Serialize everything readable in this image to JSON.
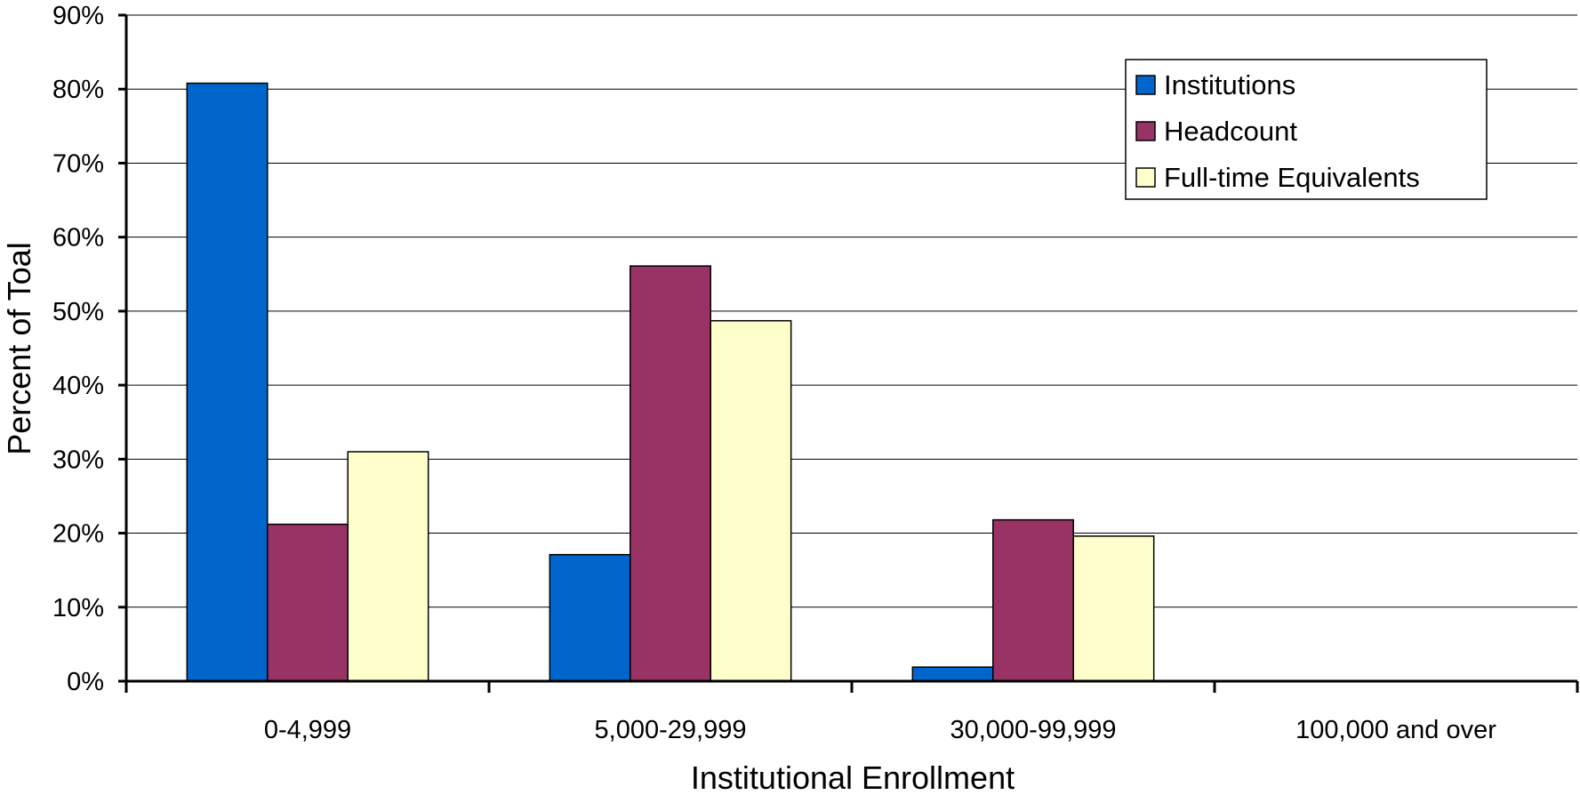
{
  "chart_data": {
    "type": "bar",
    "title": "",
    "xlabel": "Institutional Enrollment",
    "ylabel": "Percent of Toal",
    "categories": [
      "0-4,999",
      "5,000-29,999",
      "30,000-99,999",
      "100,000 and over"
    ],
    "series": [
      {
        "name": "Institutions",
        "color": "#0066cc",
        "values": [
          80.8,
          17.1,
          1.9,
          0
        ]
      },
      {
        "name": "Headcount",
        "color": "#993366",
        "values": [
          21.2,
          56.1,
          21.8,
          0
        ]
      },
      {
        "name": "Full-time Equivalents",
        "color": "#ffffcc",
        "values": [
          31.0,
          48.7,
          19.6,
          0
        ]
      }
    ],
    "ylim": [
      0,
      90
    ],
    "yticks": [
      0,
      10,
      20,
      30,
      40,
      50,
      60,
      70,
      80,
      90
    ],
    "ytick_labels": [
      "0%",
      "10%",
      "20%",
      "30%",
      "40%",
      "50%",
      "60%",
      "70%",
      "80%",
      "90%"
    ],
    "grid": true,
    "legend_position": "top-right"
  }
}
